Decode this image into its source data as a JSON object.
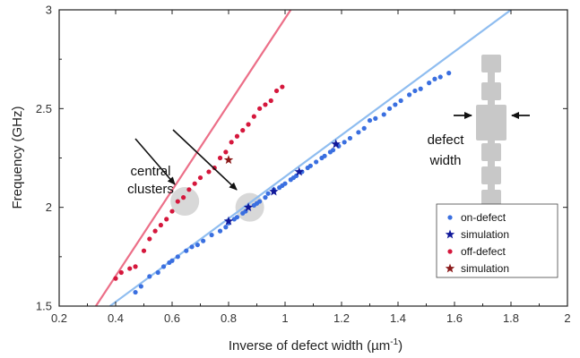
{
  "chart_data": {
    "type": "scatter",
    "xlabel": "Inverse of defect width (µm",
    "xlabel_sup": "-1",
    "xlabel_tail": ")",
    "ylabel": "Frequency (GHz)",
    "xlim": [
      0.2,
      2
    ],
    "ylim": [
      1.5,
      3
    ],
    "x_ticks": [
      0.2,
      0.4,
      0.6,
      0.8,
      1,
      1.2,
      1.4,
      1.6,
      1.8,
      2
    ],
    "x_tick_labels": [
      "0.2",
      "0.4",
      "0.6",
      "0.8",
      "1",
      "1.2",
      "1.4",
      "1.6",
      "1.8",
      "2"
    ],
    "y_ticks": [
      1.5,
      2,
      2.5,
      3
    ],
    "y_tick_labels": [
      "1.5",
      "2",
      "2.5",
      "3"
    ],
    "grid": false,
    "legend_position": "bottom-right",
    "colors": {
      "on_defect": "#3a6fe0",
      "on_defect_fit": "#8fbdf0",
      "on_sim": "#10189a",
      "off_defect": "#d5173c",
      "off_defect_fit": "#ec6f88",
      "off_sim": "#8b1a1a",
      "cluster": "#d8d8d8",
      "inset": "#c8c8c8"
    },
    "series": [
      {
        "name": "on-defect",
        "marker": "dot",
        "x": [
          0.47,
          0.49,
          0.52,
          0.55,
          0.57,
          0.59,
          0.6,
          0.62,
          0.65,
          0.67,
          0.69,
          0.71,
          0.74,
          0.77,
          0.79,
          0.8,
          0.82,
          0.83,
          0.85,
          0.86,
          0.87,
          0.89,
          0.9,
          0.91,
          0.93,
          0.94,
          0.96,
          0.98,
          0.99,
          1.0,
          1.02,
          1.03,
          1.04,
          1.06,
          1.08,
          1.09,
          1.11,
          1.13,
          1.14,
          1.16,
          1.17,
          1.19,
          1.21,
          1.23,
          1.26,
          1.28,
          1.3,
          1.32,
          1.35,
          1.37,
          1.39,
          1.41,
          1.44,
          1.46,
          1.48,
          1.51,
          1.53,
          1.55,
          1.58
        ],
        "y": [
          1.57,
          1.6,
          1.65,
          1.67,
          1.7,
          1.72,
          1.73,
          1.75,
          1.78,
          1.8,
          1.81,
          1.83,
          1.86,
          1.88,
          1.9,
          1.92,
          1.94,
          1.95,
          1.97,
          1.98,
          2.0,
          2.01,
          2.02,
          2.03,
          2.05,
          2.07,
          2.09,
          2.1,
          2.11,
          2.12,
          2.14,
          2.15,
          2.16,
          2.18,
          2.2,
          2.21,
          2.23,
          2.25,
          2.26,
          2.28,
          2.29,
          2.31,
          2.33,
          2.35,
          2.38,
          2.4,
          2.44,
          2.45,
          2.47,
          2.5,
          2.52,
          2.54,
          2.57,
          2.59,
          2.6,
          2.63,
          2.65,
          2.66,
          2.68
        ]
      },
      {
        "name": "simulation",
        "marker": "star",
        "x": [
          0.8,
          0.87,
          0.96,
          1.05,
          1.18
        ],
        "y": [
          1.93,
          2.0,
          2.08,
          2.18,
          2.32
        ]
      },
      {
        "name": "off-defect",
        "marker": "dot",
        "x": [
          0.4,
          0.42,
          0.45,
          0.47,
          0.5,
          0.52,
          0.54,
          0.56,
          0.58,
          0.6,
          0.62,
          0.64,
          0.66,
          0.68,
          0.7,
          0.73,
          0.75,
          0.77,
          0.79,
          0.81,
          0.83,
          0.85,
          0.87,
          0.89,
          0.91,
          0.93,
          0.95,
          0.97,
          0.99
        ],
        "y": [
          1.64,
          1.67,
          1.69,
          1.7,
          1.78,
          1.84,
          1.88,
          1.91,
          1.94,
          1.98,
          2.03,
          2.05,
          2.09,
          2.12,
          2.15,
          2.18,
          2.2,
          2.25,
          2.28,
          2.33,
          2.36,
          2.39,
          2.42,
          2.46,
          2.5,
          2.52,
          2.54,
          2.59,
          2.61
        ]
      },
      {
        "name": "simulation",
        "marker": "star",
        "x": [
          0.8
        ],
        "y": [
          2.24
        ]
      }
    ],
    "fit_lines": [
      {
        "series": "on-defect",
        "x": [
          0.38,
          1.8
        ],
        "y": [
          1.5,
          3.0
        ]
      },
      {
        "series": "off-defect",
        "x": [
          0.33,
          1.02
        ],
        "y": [
          1.5,
          3.0
        ]
      }
    ],
    "legend": [
      {
        "label": "on-defect",
        "marker": "dot",
        "color_key": "on_defect"
      },
      {
        "label": "simulation",
        "marker": "star",
        "color_key": "on_sim"
      },
      {
        "label": "off-defect",
        "marker": "dot",
        "color_key": "off_defect"
      },
      {
        "label": "simulation",
        "marker": "star",
        "color_key": "off_sim"
      }
    ],
    "annotations": {
      "central_clusters_line1": "central",
      "central_clusters_line2": "clusters",
      "defect_width_line1": "defect",
      "defect_width_line2": "width",
      "cluster_centers": [
        {
          "x": 0.645,
          "y": 2.03
        },
        {
          "x": 0.875,
          "y": 2.0
        }
      ]
    }
  }
}
